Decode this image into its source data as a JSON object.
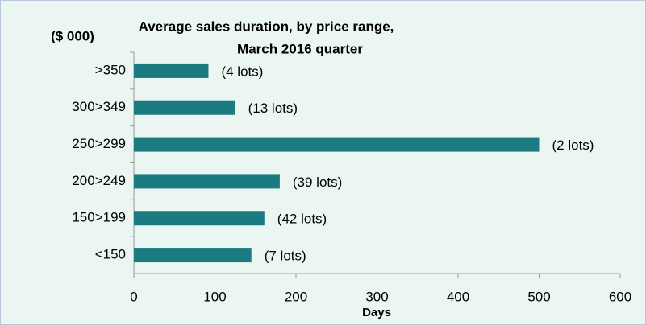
{
  "chart_data": {
    "type": "barh",
    "title": "Average sales duration, by  price range,",
    "subtitle": "March 2016 quarter",
    "y_label": "($ 000)",
    "x_label": "Days",
    "categories": [
      ">350",
      "300>349",
      "250>299",
      "200>249",
      "150>199",
      "<150"
    ],
    "values": [
      92,
      125,
      500,
      180,
      161,
      145
    ],
    "annotations": [
      "(4 lots)",
      "(13 lots)",
      "(2 lots)",
      "(39 lots)",
      "(42 lots)",
      "(7 lots)"
    ],
    "color": "#1b7b80",
    "xlim": [
      0,
      600
    ],
    "xticks": [
      0,
      100,
      200,
      300,
      400,
      500,
      600
    ],
    "grid": false
  }
}
